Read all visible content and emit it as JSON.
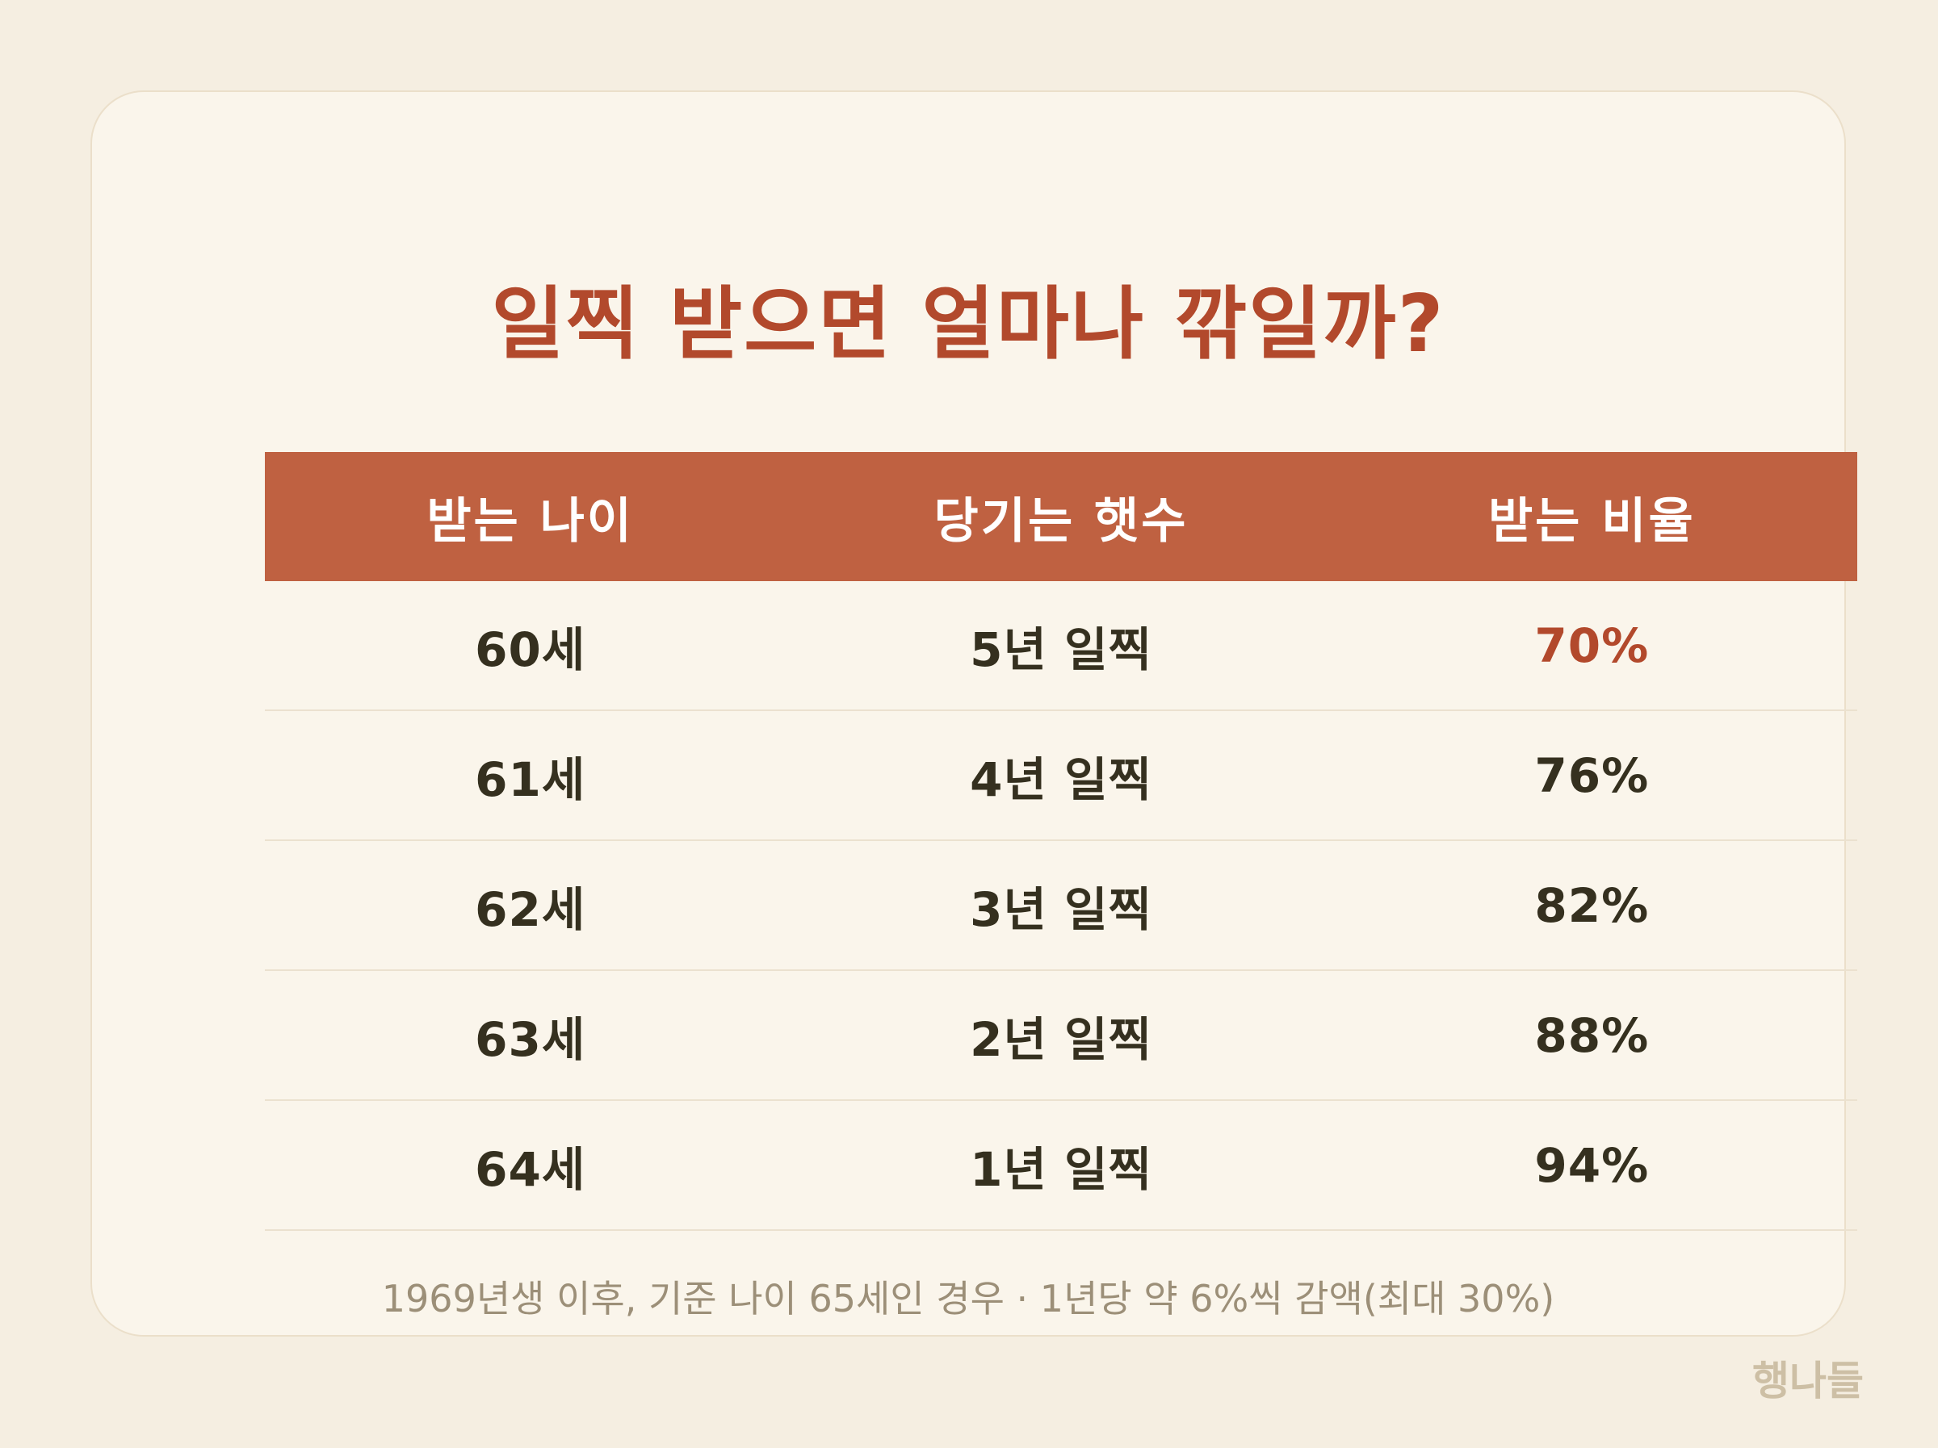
{
  "title": "일찍 받으면 얼마나 깎일까?",
  "table": {
    "headers": [
      "받는 나이",
      "당기는 햇수",
      "받는 비율"
    ],
    "rows": [
      {
        "age": "60세",
        "years": "5년 일찍",
        "ratio": "70%"
      },
      {
        "age": "61세",
        "years": "4년 일찍",
        "ratio": "76%"
      },
      {
        "age": "62세",
        "years": "3년 일찍",
        "ratio": "82%"
      },
      {
        "age": "63세",
        "years": "2년 일찍",
        "ratio": "88%"
      },
      {
        "age": "64세",
        "years": "1년 일찍",
        "ratio": "94%"
      }
    ]
  },
  "note": "1969년생 이후, 기준 나이 65세인 경우 · 1년당 약 6%씩 감액(최대 30%)",
  "brand": "행나들",
  "colors": {
    "accent": "#b2492c",
    "header_bg": "#bf6141",
    "page_bg": "#f5eee1",
    "card_bg": "#faf5eb",
    "text": "#35301f",
    "muted": "#9c8f78"
  }
}
